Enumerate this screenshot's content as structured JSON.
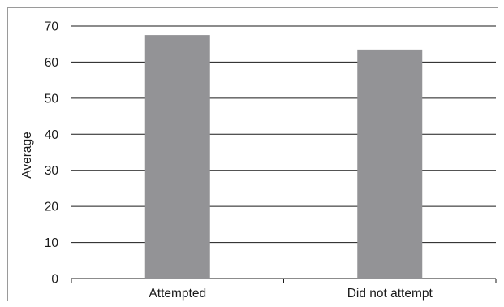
{
  "chart_data": {
    "type": "bar",
    "categories": [
      "Attempted",
      "Did not attempt"
    ],
    "values": [
      67.5,
      63.5
    ],
    "ylabel": "Average",
    "ylim": [
      0,
      70
    ],
    "yticks": [
      0,
      10,
      20,
      30,
      40,
      50,
      60,
      70
    ],
    "grid": true,
    "legend": "none",
    "colors": {
      "bar": "#939396",
      "grid": "#1a1a1a",
      "axis": "#1a1a1a"
    }
  }
}
